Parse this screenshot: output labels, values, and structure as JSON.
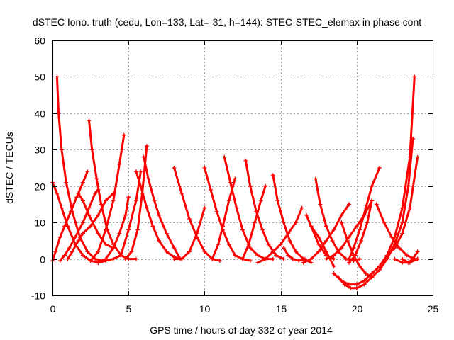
{
  "chart_data": {
    "type": "scatter",
    "title": "dSTEC Iono. truth (cedu, Lon=133, Lat=-31, h=144): STEC-STEC_elemax in phase cont",
    "xlabel": "GPS time / hours of day 332 of year 2014",
    "ylabel": "dSTEC  / TECUs",
    "xlim": [
      0,
      25
    ],
    "ylim": [
      -10,
      60
    ],
    "xticks": [
      0,
      5,
      10,
      15,
      20,
      25
    ],
    "yticks": [
      -10,
      0,
      10,
      20,
      30,
      40,
      50,
      60
    ],
    "grid": true,
    "legend": "none",
    "color": "#ff0000",
    "marker": "plus",
    "series": [
      {
        "x": [
          0.0,
          0.3,
          0.6,
          1.0,
          1.5,
          2.0,
          2.5,
          3.0,
          3.5
        ],
        "y": [
          21,
          18,
          14,
          9,
          4,
          1,
          -0.5,
          -1,
          -0.5
        ]
      },
      {
        "x": [
          0.0,
          0.2,
          0.5,
          0.8,
          1.2,
          1.6,
          2.0,
          2.3
        ],
        "y": [
          -0.5,
          2,
          6,
          9,
          13,
          17,
          21,
          24
        ]
      },
      {
        "x": [
          0.3,
          0.4,
          0.6,
          0.9,
          1.3,
          1.8,
          2.3,
          2.8,
          3.3
        ],
        "y": [
          50,
          40,
          30,
          21,
          13,
          6,
          2,
          0,
          -0.5
        ]
      },
      {
        "x": [
          0.5,
          0.8,
          1.1,
          1.5,
          2.0,
          2.4,
          2.8,
          3.0
        ],
        "y": [
          -0.5,
          1,
          3,
          6,
          10,
          14,
          18,
          19
        ]
      },
      {
        "x": [
          1.0,
          1.3,
          1.7,
          2.0,
          2.5,
          3.0,
          3.5,
          4.0
        ],
        "y": [
          0,
          2,
          5,
          7,
          9,
          12,
          16,
          18
        ]
      },
      {
        "x": [
          1.7,
          2.0,
          2.4,
          3.0,
          3.5,
          4.0
        ],
        "y": [
          18,
          16,
          12,
          7,
          4,
          3
        ]
      },
      {
        "x": [
          2.4,
          2.6,
          2.9,
          3.2,
          3.6,
          4.0,
          4.5,
          5.0,
          5.5
        ],
        "y": [
          38,
          30,
          22,
          15,
          8,
          4,
          1,
          0,
          0
        ]
      },
      {
        "x": [
          2.5,
          3.0,
          3.5,
          4.0,
          4.4,
          4.7
        ],
        "y": [
          -0.5,
          2,
          8,
          16,
          26,
          34
        ]
      },
      {
        "x": [
          3.0,
          3.5,
          4.0,
          4.4,
          4.8,
          5.0
        ],
        "y": [
          -1,
          0,
          3,
          7,
          12,
          17
        ]
      },
      {
        "x": [
          3.5,
          4.0,
          4.5,
          5.0,
          5.5,
          5.8
        ],
        "y": [
          -0.5,
          0,
          1,
          8,
          16,
          24
        ]
      },
      {
        "x": [
          4.8,
          5.2,
          5.6,
          5.9,
          6.2
        ],
        "y": [
          0,
          2,
          8,
          18,
          31
        ]
      },
      {
        "x": [
          5.5,
          5.8,
          6.2,
          6.6,
          7.0,
          7.5,
          8.0,
          8.5
        ],
        "y": [
          24,
          20,
          14,
          9,
          5,
          2,
          0.5,
          0
        ]
      },
      {
        "x": [
          6.0,
          6.3,
          6.7,
          7.0,
          7.5,
          8.0,
          8.4
        ],
        "y": [
          28,
          22,
          16,
          12,
          7,
          3,
          0
        ]
      },
      {
        "x": [
          8.0,
          8.5,
          9.0,
          9.5,
          10.0,
          10.5,
          11.0
        ],
        "y": [
          25,
          18,
          11,
          6,
          2,
          0,
          -0.5
        ]
      },
      {
        "x": [
          8.0,
          8.5,
          9.0,
          9.5,
          10.0
        ],
        "y": [
          0,
          0,
          2,
          7,
          14
        ]
      },
      {
        "x": [
          10.0,
          10.4,
          10.8,
          11.2,
          11.6,
          12.0,
          12.5,
          13.0
        ],
        "y": [
          25,
          19,
          13,
          8,
          4,
          1,
          0,
          -0.5
        ]
      },
      {
        "x": [
          10.5,
          10.9,
          11.2,
          11.6,
          12.0
        ],
        "y": [
          0,
          4,
          9,
          16,
          22
        ]
      },
      {
        "x": [
          11.3,
          11.7,
          12.1,
          12.5,
          13.0,
          13.5,
          14.0,
          14.5
        ],
        "y": [
          28,
          21,
          14,
          8,
          3,
          1,
          0,
          0
        ]
      },
      {
        "x": [
          12.5,
          12.9,
          13.3,
          13.7,
          14.0
        ],
        "y": [
          0,
          4,
          10,
          16,
          20
        ]
      },
      {
        "x": [
          12.7,
          13.0,
          13.4,
          13.8,
          14.2,
          14.7,
          15.2
        ],
        "y": [
          27,
          20,
          13,
          8,
          4,
          1,
          0
        ]
      },
      {
        "x": [
          13.5,
          14.0,
          14.5,
          15.0,
          15.5,
          16.0,
          16.4
        ],
        "y": [
          -1,
          0,
          2,
          4,
          7,
          10,
          14
        ]
      },
      {
        "x": [
          14.5,
          14.8,
          15.2,
          15.6,
          16.0,
          16.5,
          17.0
        ],
        "y": [
          23,
          16,
          10,
          5,
          2,
          0,
          -1
        ]
      },
      {
        "x": [
          15.2,
          15.5,
          15.8,
          16.2,
          16.6
        ],
        "y": [
          3,
          1,
          0,
          -0.5,
          0
        ]
      },
      {
        "x": [
          16.7,
          17.0,
          17.5,
          18.0,
          18.5
        ],
        "y": [
          12,
          9,
          4,
          1,
          0
        ]
      },
      {
        "x": [
          17.0,
          17.5,
          18.0,
          18.5
        ],
        "y": [
          9,
          6,
          2,
          -2
        ]
      },
      {
        "x": [
          16.5,
          17.0,
          17.5,
          18.0,
          18.5,
          19.0,
          19.5
        ],
        "y": [
          -1,
          0,
          2,
          5,
          8,
          12,
          15
        ]
      },
      {
        "x": [
          17.3,
          17.6,
          18.0,
          18.4,
          18.8,
          19.3,
          19.8,
          20.2
        ],
        "y": [
          22,
          15,
          9,
          5,
          2,
          0,
          -0.5,
          0
        ]
      },
      {
        "x": [
          18.0,
          18.5,
          19.0,
          19.5,
          20.0,
          20.5,
          21.0
        ],
        "y": [
          0,
          1,
          3,
          6,
          9,
          12,
          16
        ]
      },
      {
        "x": [
          18.5,
          19.0,
          19.5,
          20.0,
          20.5,
          21.0,
          21.5,
          22.0,
          22.5,
          23.0,
          23.5,
          23.8
        ],
        "y": [
          -4,
          -6,
          -7,
          -7,
          -6,
          -4,
          -2,
          1,
          6,
          14,
          28,
          50
        ]
      },
      {
        "x": [
          18.8,
          19.2,
          19.6,
          20.0,
          20.5,
          21.0,
          21.5,
          22.0,
          22.5,
          23.0,
          23.4,
          23.7
        ],
        "y": [
          -5,
          -7,
          -8,
          -8,
          -7,
          -5,
          -3,
          0,
          4,
          10,
          20,
          33
        ]
      },
      {
        "x": [
          19.0,
          19.4,
          19.8,
          20.2,
          20.6,
          21.0
        ],
        "y": [
          10,
          5,
          1,
          -2,
          -4,
          -5
        ]
      },
      {
        "x": [
          19.5,
          19.8,
          20.2,
          20.6,
          21.0,
          21.5
        ],
        "y": [
          0,
          3,
          8,
          14,
          20,
          25
        ]
      },
      {
        "x": [
          19.5,
          19.9,
          20.3,
          20.7,
          21.0
        ],
        "y": [
          -1,
          1,
          5,
          10,
          16
        ]
      },
      {
        "x": [
          21.3,
          21.8,
          22.3,
          22.8,
          23.3,
          23.8,
          24.0
        ],
        "y": [
          15,
          10,
          6,
          3,
          1,
          0,
          0
        ]
      },
      {
        "x": [
          22.5,
          23.0,
          23.5,
          24.0
        ],
        "y": [
          0,
          -1,
          -1,
          0
        ]
      },
      {
        "x": [
          22.0,
          22.5,
          23.0,
          23.5,
          24.0
        ],
        "y": [
          1,
          3,
          7,
          14,
          28
        ]
      },
      {
        "x": [
          23.0,
          23.4,
          23.7,
          24.0
        ],
        "y": [
          0,
          -1,
          0,
          2
        ]
      }
    ]
  }
}
